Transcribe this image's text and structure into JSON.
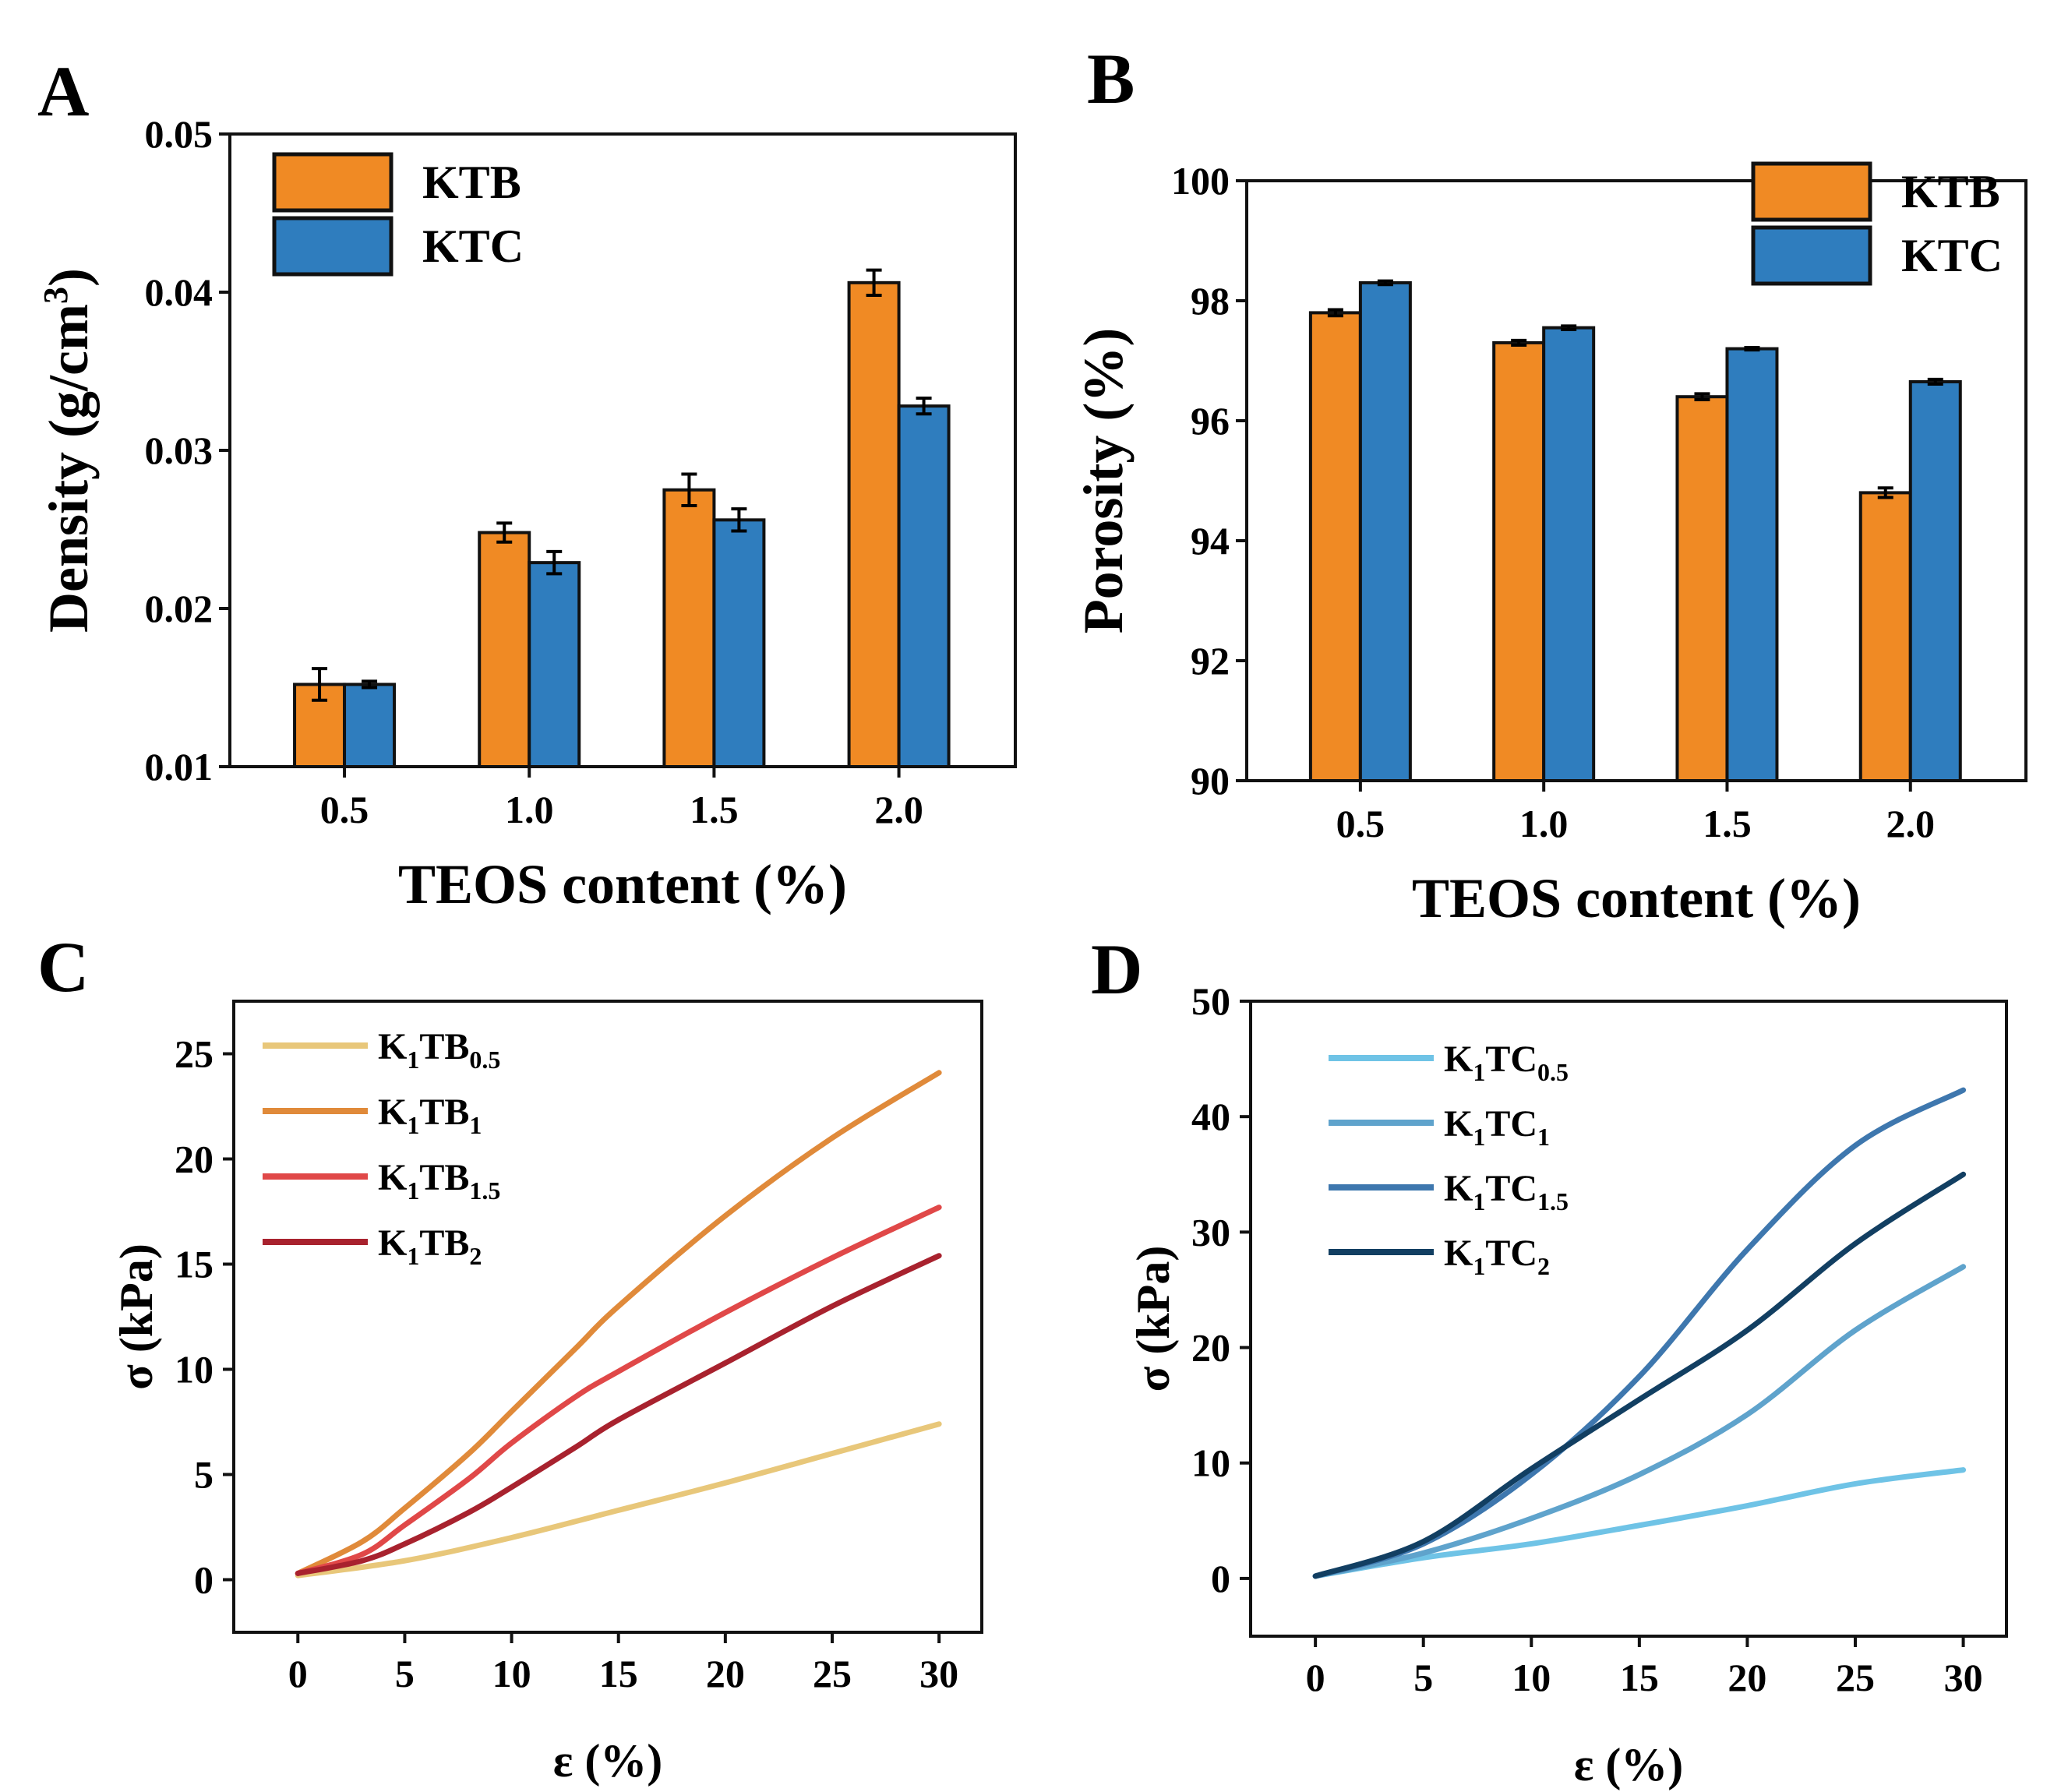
{
  "chart_data": [
    {
      "panel": "A",
      "type": "bar",
      "xlabel": "TEOS content (%)",
      "ylabel": "Density (g/cm",
      "ylabel_sup": "3",
      "ylabel_end": ")",
      "categories": [
        "0.5",
        "1.0",
        "1.5",
        "2.0"
      ],
      "ylim": [
        0.01,
        0.05
      ],
      "yticks": [
        "0.01",
        "0.02",
        "0.03",
        "0.04",
        "0.05"
      ],
      "yticks_values": [
        0.01,
        0.02,
        0.03,
        0.04,
        0.05
      ],
      "legend_position": "top-left",
      "series": [
        {
          "name": "KTB",
          "color": "#F08A24",
          "values": [
            0.0152,
            0.0248,
            0.0275,
            0.0406
          ],
          "errors": [
            0.001,
            0.0006,
            0.001,
            0.0008
          ]
        },
        {
          "name": "KTC",
          "color": "#2F7DBE",
          "values": [
            0.0152,
            0.0229,
            0.0256,
            0.0328
          ],
          "errors": [
            0.0002,
            0.0007,
            0.0007,
            0.0005
          ]
        }
      ]
    },
    {
      "panel": "B",
      "type": "bar",
      "xlabel": "TEOS content (%)",
      "ylabel": "Porosity (%)",
      "categories": [
        "0.5",
        "1.0",
        "1.5",
        "2.0"
      ],
      "ylim": [
        90,
        100
      ],
      "yticks": [
        "90",
        "92",
        "94",
        "96",
        "98",
        "100"
      ],
      "yticks_values": [
        90,
        92,
        94,
        96,
        98,
        100
      ],
      "legend_position": "top-right",
      "series": [
        {
          "name": "KTB",
          "color": "#F08A24",
          "values": [
            97.8,
            97.3,
            96.4,
            94.8
          ],
          "errors": [
            0.05,
            0.04,
            0.05,
            0.08
          ]
        },
        {
          "name": "KTC",
          "color": "#2F7DBE",
          "values": [
            98.3,
            97.55,
            97.2,
            96.65
          ],
          "errors": [
            0.03,
            0.03,
            0.02,
            0.04
          ]
        }
      ]
    },
    {
      "panel": "C",
      "type": "line",
      "xlabel": "ε (%)",
      "ylabel": "σ (kPa)",
      "xlim": [
        -3,
        32
      ],
      "ylim": [
        -2.5,
        27.5
      ],
      "xticks": [
        0,
        5,
        10,
        15,
        20,
        25,
        30
      ],
      "yticks": [
        0,
        5,
        10,
        15,
        20,
        25
      ],
      "legend_position": "top-left",
      "series": [
        {
          "name": "K1TB0.5",
          "label": "K",
          "sub1": "1",
          "label2": "TB",
          "sub2": "0.5",
          "color": "#E8C77A",
          "x": [
            0,
            5,
            10,
            15,
            20,
            25,
            30
          ],
          "y": [
            0.2,
            0.9,
            2.0,
            3.3,
            4.6,
            6.0,
            7.4
          ]
        },
        {
          "name": "K1TB1",
          "label": "K",
          "sub1": "1",
          "label2": "TB",
          "sub2": "1",
          "color": "#E08A3A",
          "x": [
            0,
            3,
            5,
            8,
            10,
            13,
            15,
            20,
            25,
            30
          ],
          "y": [
            0.3,
            1.8,
            3.4,
            6.0,
            8.0,
            11.0,
            13.0,
            17.3,
            21.0,
            24.1
          ]
        },
        {
          "name": "K1TB1.5",
          "label": "K",
          "sub1": "1",
          "label2": "TB",
          "sub2": "1.5",
          "color": "#E04848",
          "x": [
            0,
            3,
            5,
            8,
            10,
            13,
            15,
            20,
            25,
            30
          ],
          "y": [
            0.3,
            1.2,
            2.6,
            4.8,
            6.5,
            8.7,
            9.9,
            12.7,
            15.3,
            17.7
          ]
        },
        {
          "name": "K1TB2",
          "label": "K",
          "sub1": "1",
          "label2": "TB",
          "sub2": "2",
          "color": "#A8222E",
          "x": [
            0,
            3,
            5,
            8,
            10,
            13,
            15,
            20,
            25,
            30
          ],
          "y": [
            0.3,
            0.9,
            1.7,
            3.2,
            4.4,
            6.3,
            7.6,
            10.3,
            13.0,
            15.4
          ]
        }
      ]
    },
    {
      "panel": "D",
      "type": "line",
      "xlabel": "ε (%)",
      "ylabel": "σ (kPa)",
      "xlim": [
        -3,
        32
      ],
      "ylim": [
        -5,
        50
      ],
      "xticks": [
        0,
        5,
        10,
        15,
        20,
        25,
        30
      ],
      "yticks": [
        0,
        10,
        20,
        30,
        40,
        50
      ],
      "legend_position": "top-left",
      "series": [
        {
          "name": "K1TC0.5",
          "label": "K",
          "sub1": "1",
          "label2": "TC",
          "sub2": "0.5",
          "color": "#6FC3E6",
          "x": [
            0,
            5,
            10,
            15,
            20,
            25,
            30
          ],
          "y": [
            0.2,
            1.8,
            3.0,
            4.6,
            6.3,
            8.2,
            9.4
          ]
        },
        {
          "name": "K1TC1",
          "label": "K",
          "sub1": "1",
          "label2": "TC",
          "sub2": "1",
          "color": "#5FA3CC",
          "x": [
            0,
            5,
            10,
            15,
            20,
            25,
            30
          ],
          "y": [
            0.2,
            2.2,
            5.2,
            9.0,
            14.2,
            21.5,
            27.0
          ]
        },
        {
          "name": "K1TC1.5",
          "label": "K",
          "sub1": "1",
          "label2": "TC",
          "sub2": "1.5",
          "color": "#3E77AE",
          "x": [
            0,
            5,
            10,
            15,
            20,
            25,
            30
          ],
          "y": [
            0.2,
            3.0,
            9.0,
            17.5,
            28.5,
            37.5,
            42.3
          ]
        },
        {
          "name": "K1TC2",
          "label": "K",
          "sub1": "1",
          "label2": "TC",
          "sub2": "2",
          "color": "#123F62",
          "x": [
            0,
            5,
            10,
            15,
            20,
            25,
            30
          ],
          "y": [
            0.2,
            3.2,
            9.5,
            15.5,
            21.5,
            29.0,
            35.0
          ]
        }
      ]
    }
  ]
}
